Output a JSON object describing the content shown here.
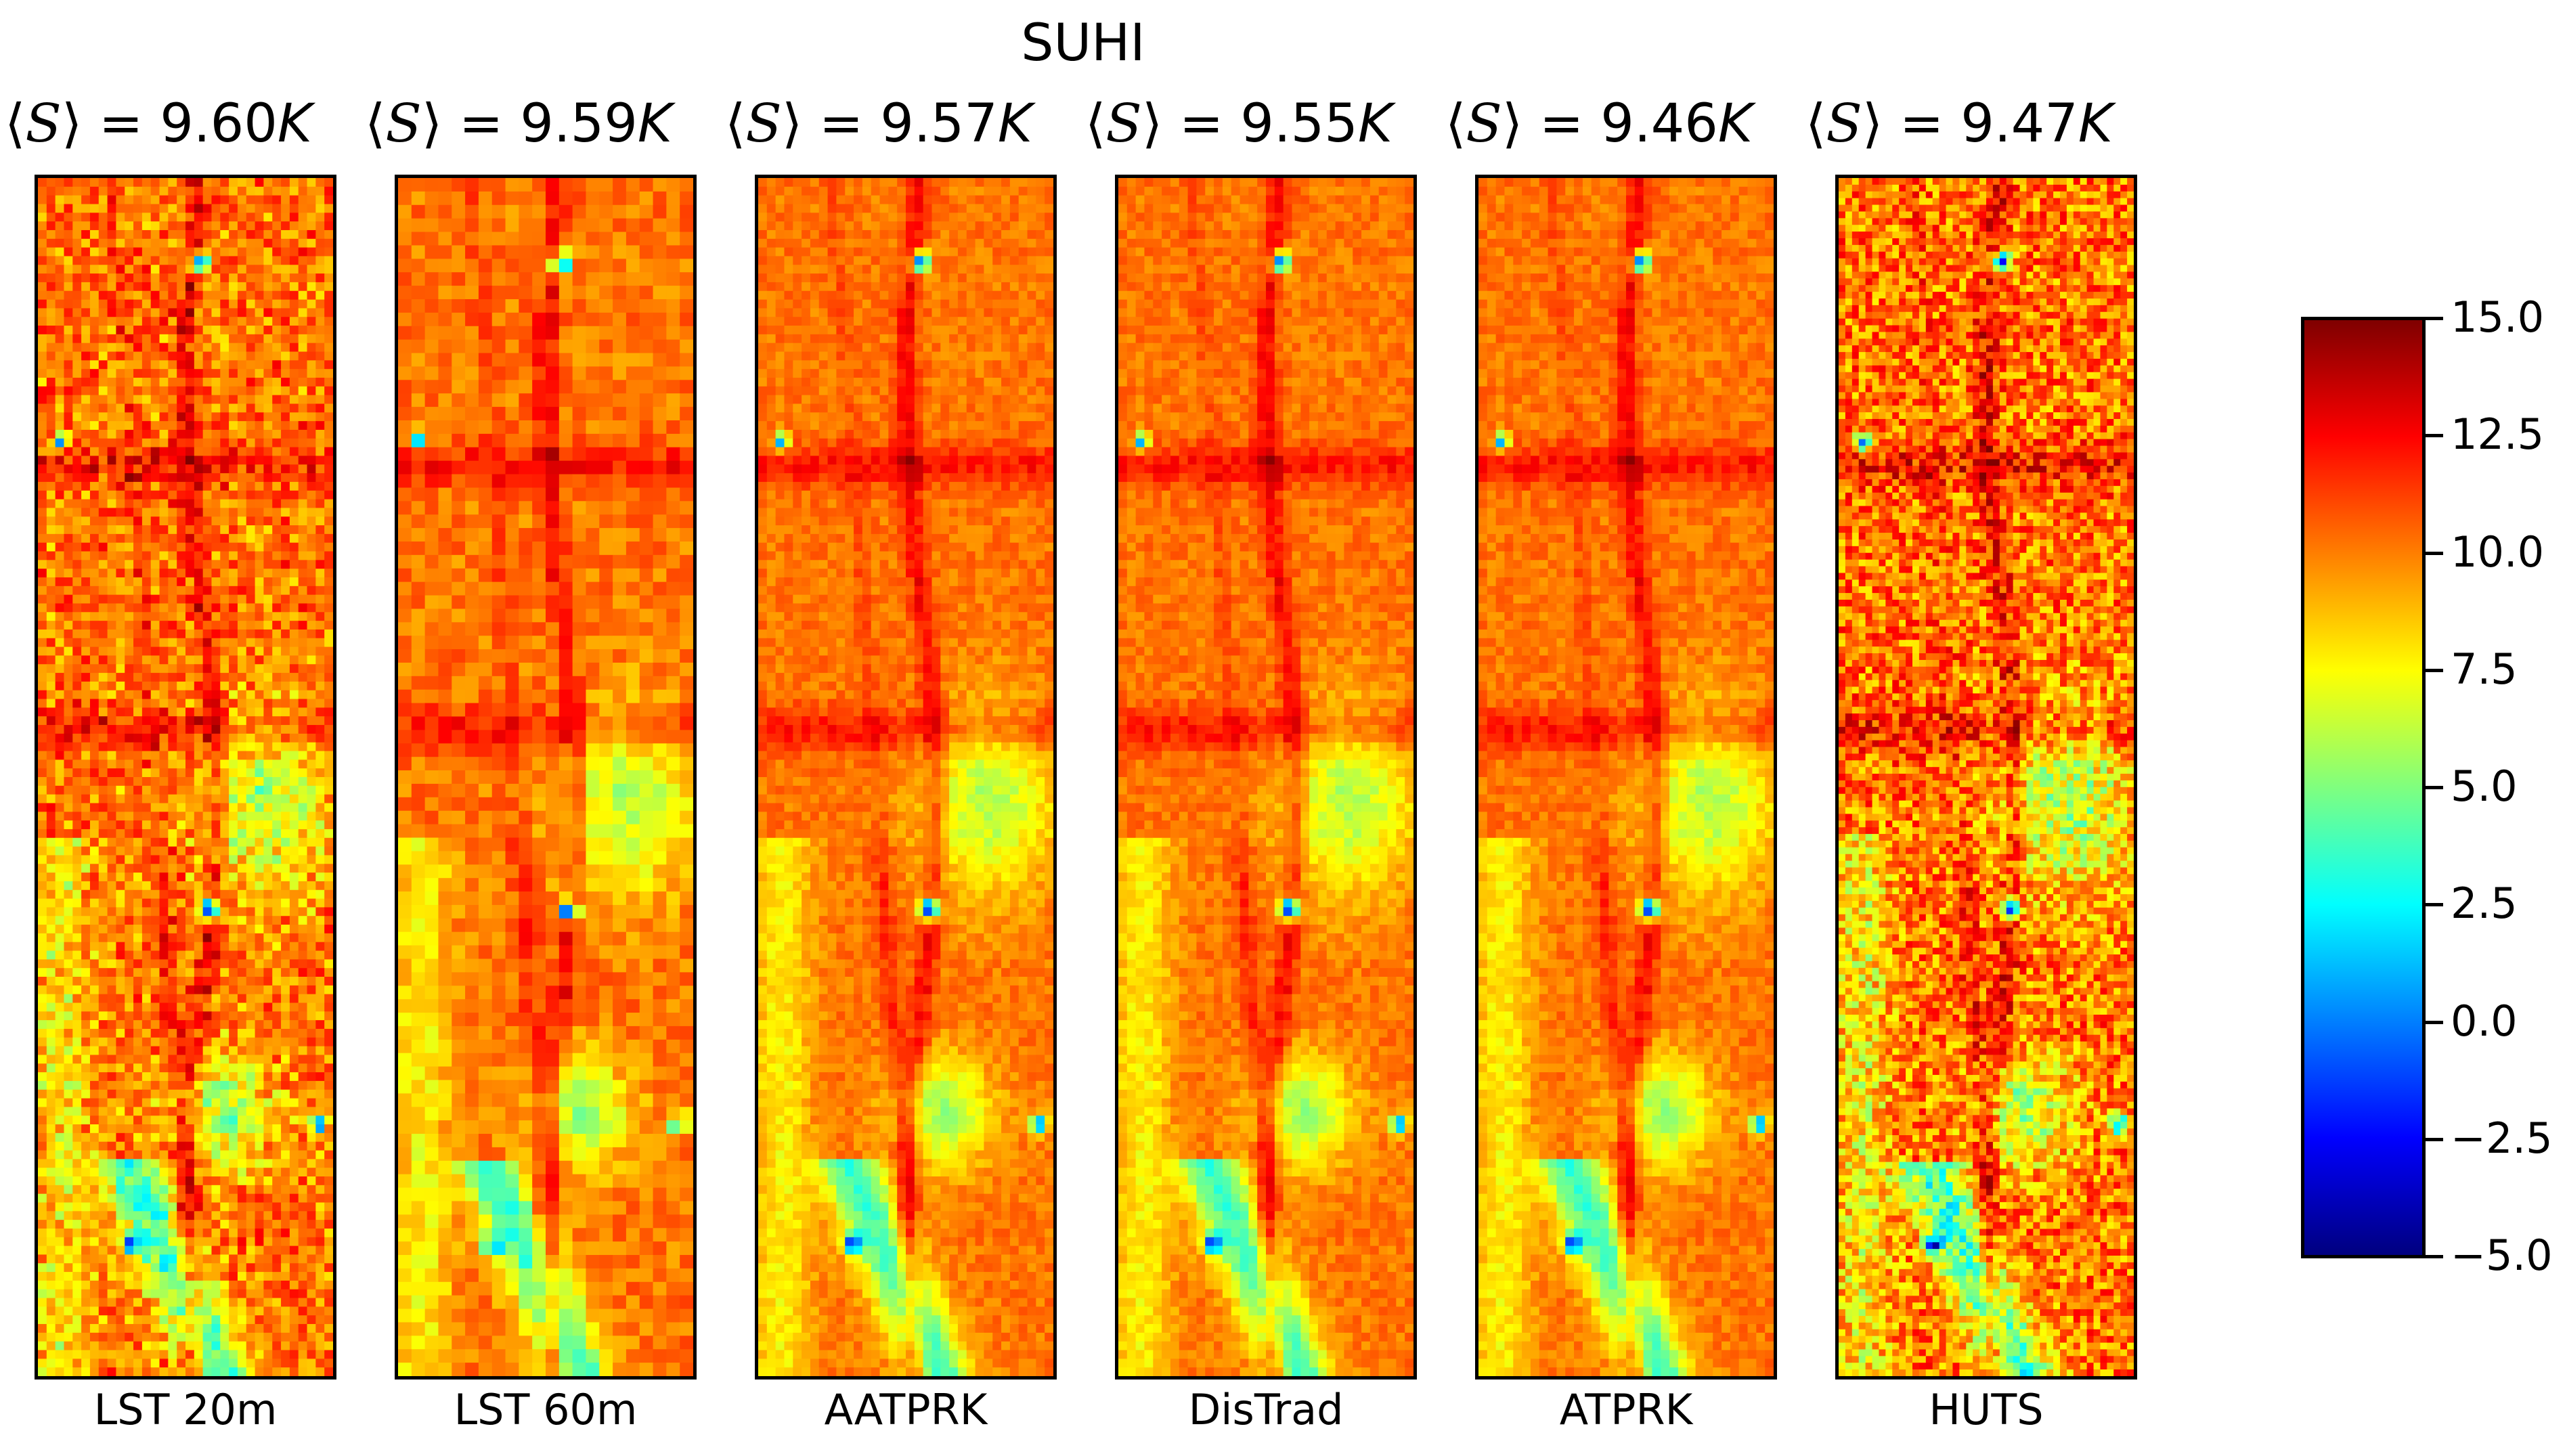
{
  "chart_data": {
    "type": "heatmap",
    "title": "SUHI",
    "panels": [
      {
        "mean_label_value": "9.60",
        "unit": "K",
        "label": "LST 20m",
        "style": "fine"
      },
      {
        "mean_label_value": "9.59",
        "unit": "K",
        "label": "LST 60m",
        "style": "coarse"
      },
      {
        "mean_label_value": "9.57",
        "unit": "K",
        "label": "AATPRK",
        "style": "smooth"
      },
      {
        "mean_label_value": "9.55",
        "unit": "K",
        "label": "DisTrad",
        "style": "smooth"
      },
      {
        "mean_label_value": "9.46",
        "unit": "K",
        "label": "ATPRK",
        "style": "smooth"
      },
      {
        "mean_label_value": "9.47",
        "unit": "K",
        "label": "HUTS",
        "style": "noisy"
      }
    ],
    "colorbar": {
      "colormap": "jet",
      "range": [
        -5.0,
        15.0
      ],
      "ticks": [
        "15.0",
        "12.5",
        "10.0",
        "7.5",
        "5.0",
        "2.5",
        "0.0",
        "−2.5",
        "−5.0"
      ],
      "tick_values": [
        15.0,
        12.5,
        10.0,
        7.5,
        5.0,
        2.5,
        0.0,
        -2.5,
        -5.0
      ]
    }
  }
}
